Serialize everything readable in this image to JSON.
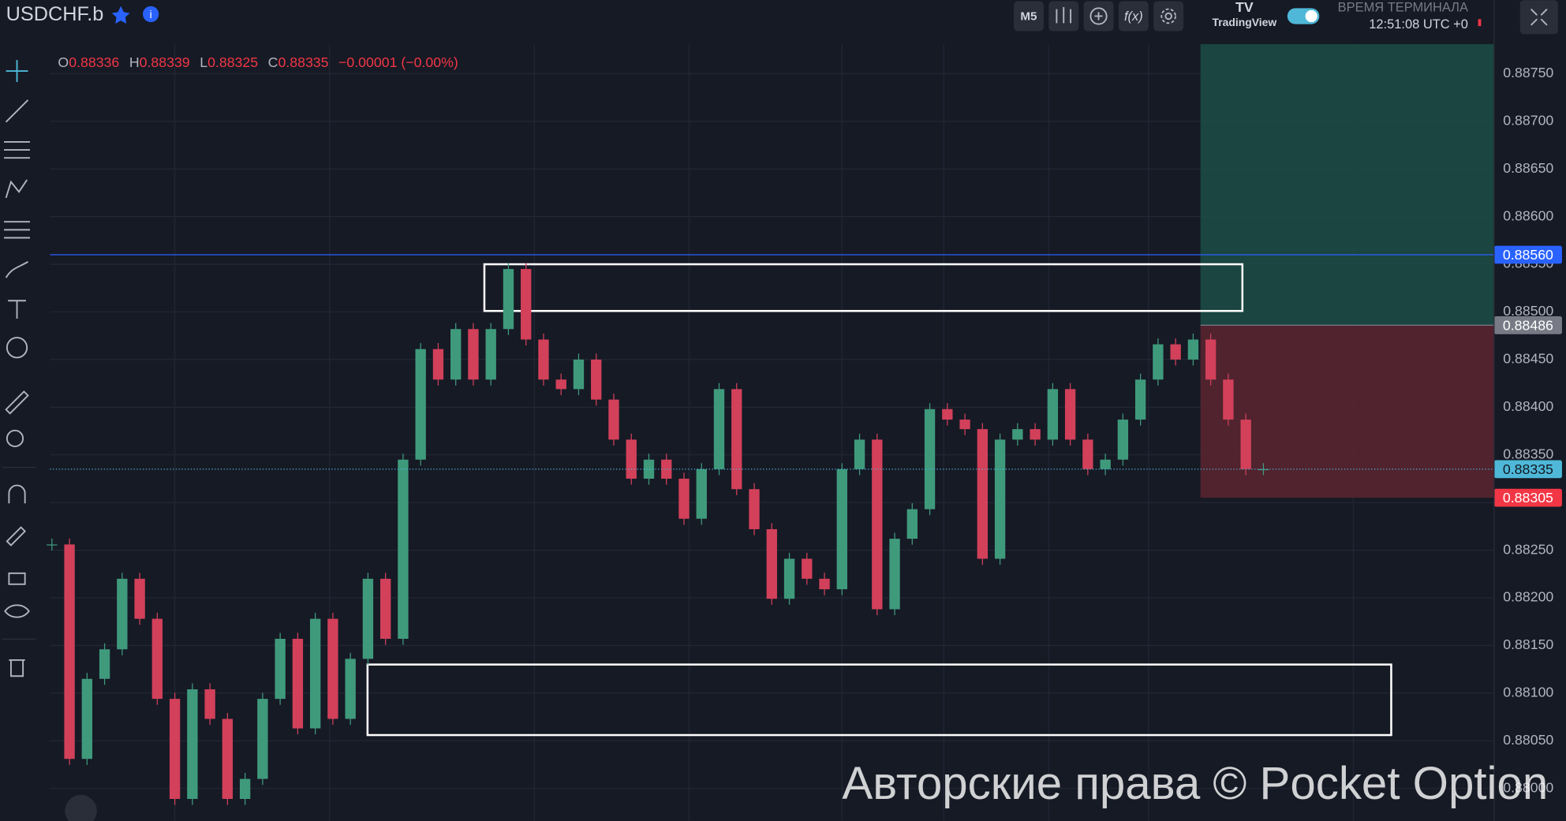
{
  "header": {
    "symbol": "USDCHF.b",
    "timeframe": "M5",
    "brand": "TradingView",
    "terminal_label": "ВРЕМЯ ТЕРМИНАЛА",
    "terminal_time": "12:51:08 UTC +0"
  },
  "ohlc": {
    "o_label": "O",
    "o": "0.88336",
    "h_label": "H",
    "h": "0.88339",
    "l_label": "L",
    "l": "0.88325",
    "c_label": "C",
    "c": "0.88335",
    "change": "−0.00001 (−0.00%)"
  },
  "watermark": "Авторские права © Pocket Option",
  "chart_data": {
    "type": "candlestick",
    "values": [
      0.88256,
      0.88031,
      0.88115,
      0.88146,
      0.8822,
      0.88178,
      0.88094,
      0.87989,
      0.88104,
      0.88073,
      0.87989,
      0.8801,
      0.88094,
      0.88157,
      0.88063,
      0.88178,
      0.88073,
      0.88136,
      0.8822,
      0.88157,
      0.88345,
      0.88461,
      0.88429,
      0.88482,
      0.88429,
      0.88482,
      0.88545,
      0.88471,
      0.88429,
      0.88419,
      0.8845,
      0.88408,
      0.88366,
      0.88325,
      0.88345,
      0.88325,
      0.88283,
      0.88335,
      0.88419,
      0.88314,
      0.88272,
      0.88199,
      0.88241,
      0.8822,
      0.88209,
      0.88335,
      0.88366,
      0.88188,
      0.88262,
      0.88293,
      0.88398,
      0.88387,
      0.88377,
      0.88241,
      0.88366,
      0.88377,
      0.88366,
      0.88419,
      0.88366,
      0.88335,
      0.88345,
      0.88387,
      0.88429,
      0.88466,
      0.8845,
      0.88471,
      0.88429,
      0.88387,
      0.88335,
      0.88335
    ],
    "up_color": "#3f9a7c",
    "down_color": "#d2405a",
    "ylim": [
      0.87966,
      0.88781
    ],
    "yticks": [
      {
        "value": 0.88,
        "label": "0.88000"
      },
      {
        "value": 0.8805,
        "label": "0.88050"
      },
      {
        "value": 0.881,
        "label": "0.88100"
      },
      {
        "value": 0.8815,
        "label": "0.88150"
      },
      {
        "value": 0.882,
        "label": "0.88200"
      },
      {
        "value": 0.8825,
        "label": "0.88250"
      },
      {
        "value": 0.883,
        "label": "0.88300"
      },
      {
        "value": 0.8835,
        "label": "0.88350"
      },
      {
        "value": 0.884,
        "label": "0.88400"
      },
      {
        "value": 0.8845,
        "label": "0.88450"
      },
      {
        "value": 0.885,
        "label": "0.88500"
      },
      {
        "value": 0.8855,
        "label": "0.88550"
      },
      {
        "value": 0.886,
        "label": "0.88600"
      },
      {
        "value": 0.8865,
        "label": "0.88650"
      },
      {
        "value": 0.887,
        "label": "0.88700"
      },
      {
        "value": 0.8875,
        "label": "0.88750"
      }
    ],
    "grid": true,
    "alert_line": {
      "value": 0.8856,
      "label": "0.88560",
      "color": "#2962ff"
    },
    "current_price": {
      "value": 0.88335,
      "label": "0.88335",
      "color": "#4fb8d8"
    },
    "position": {
      "entry": {
        "value": 0.88486,
        "label": "0.88486"
      },
      "stop": {
        "value": 0.88305,
        "label": "0.88305"
      },
      "profit_color": "#1b4d45",
      "loss_color": "#5a2630"
    },
    "boxes": [
      {
        "top": 0.8855,
        "bottom": 0.88501
      },
      {
        "top": 0.8813,
        "bottom": 0.88056
      }
    ]
  }
}
